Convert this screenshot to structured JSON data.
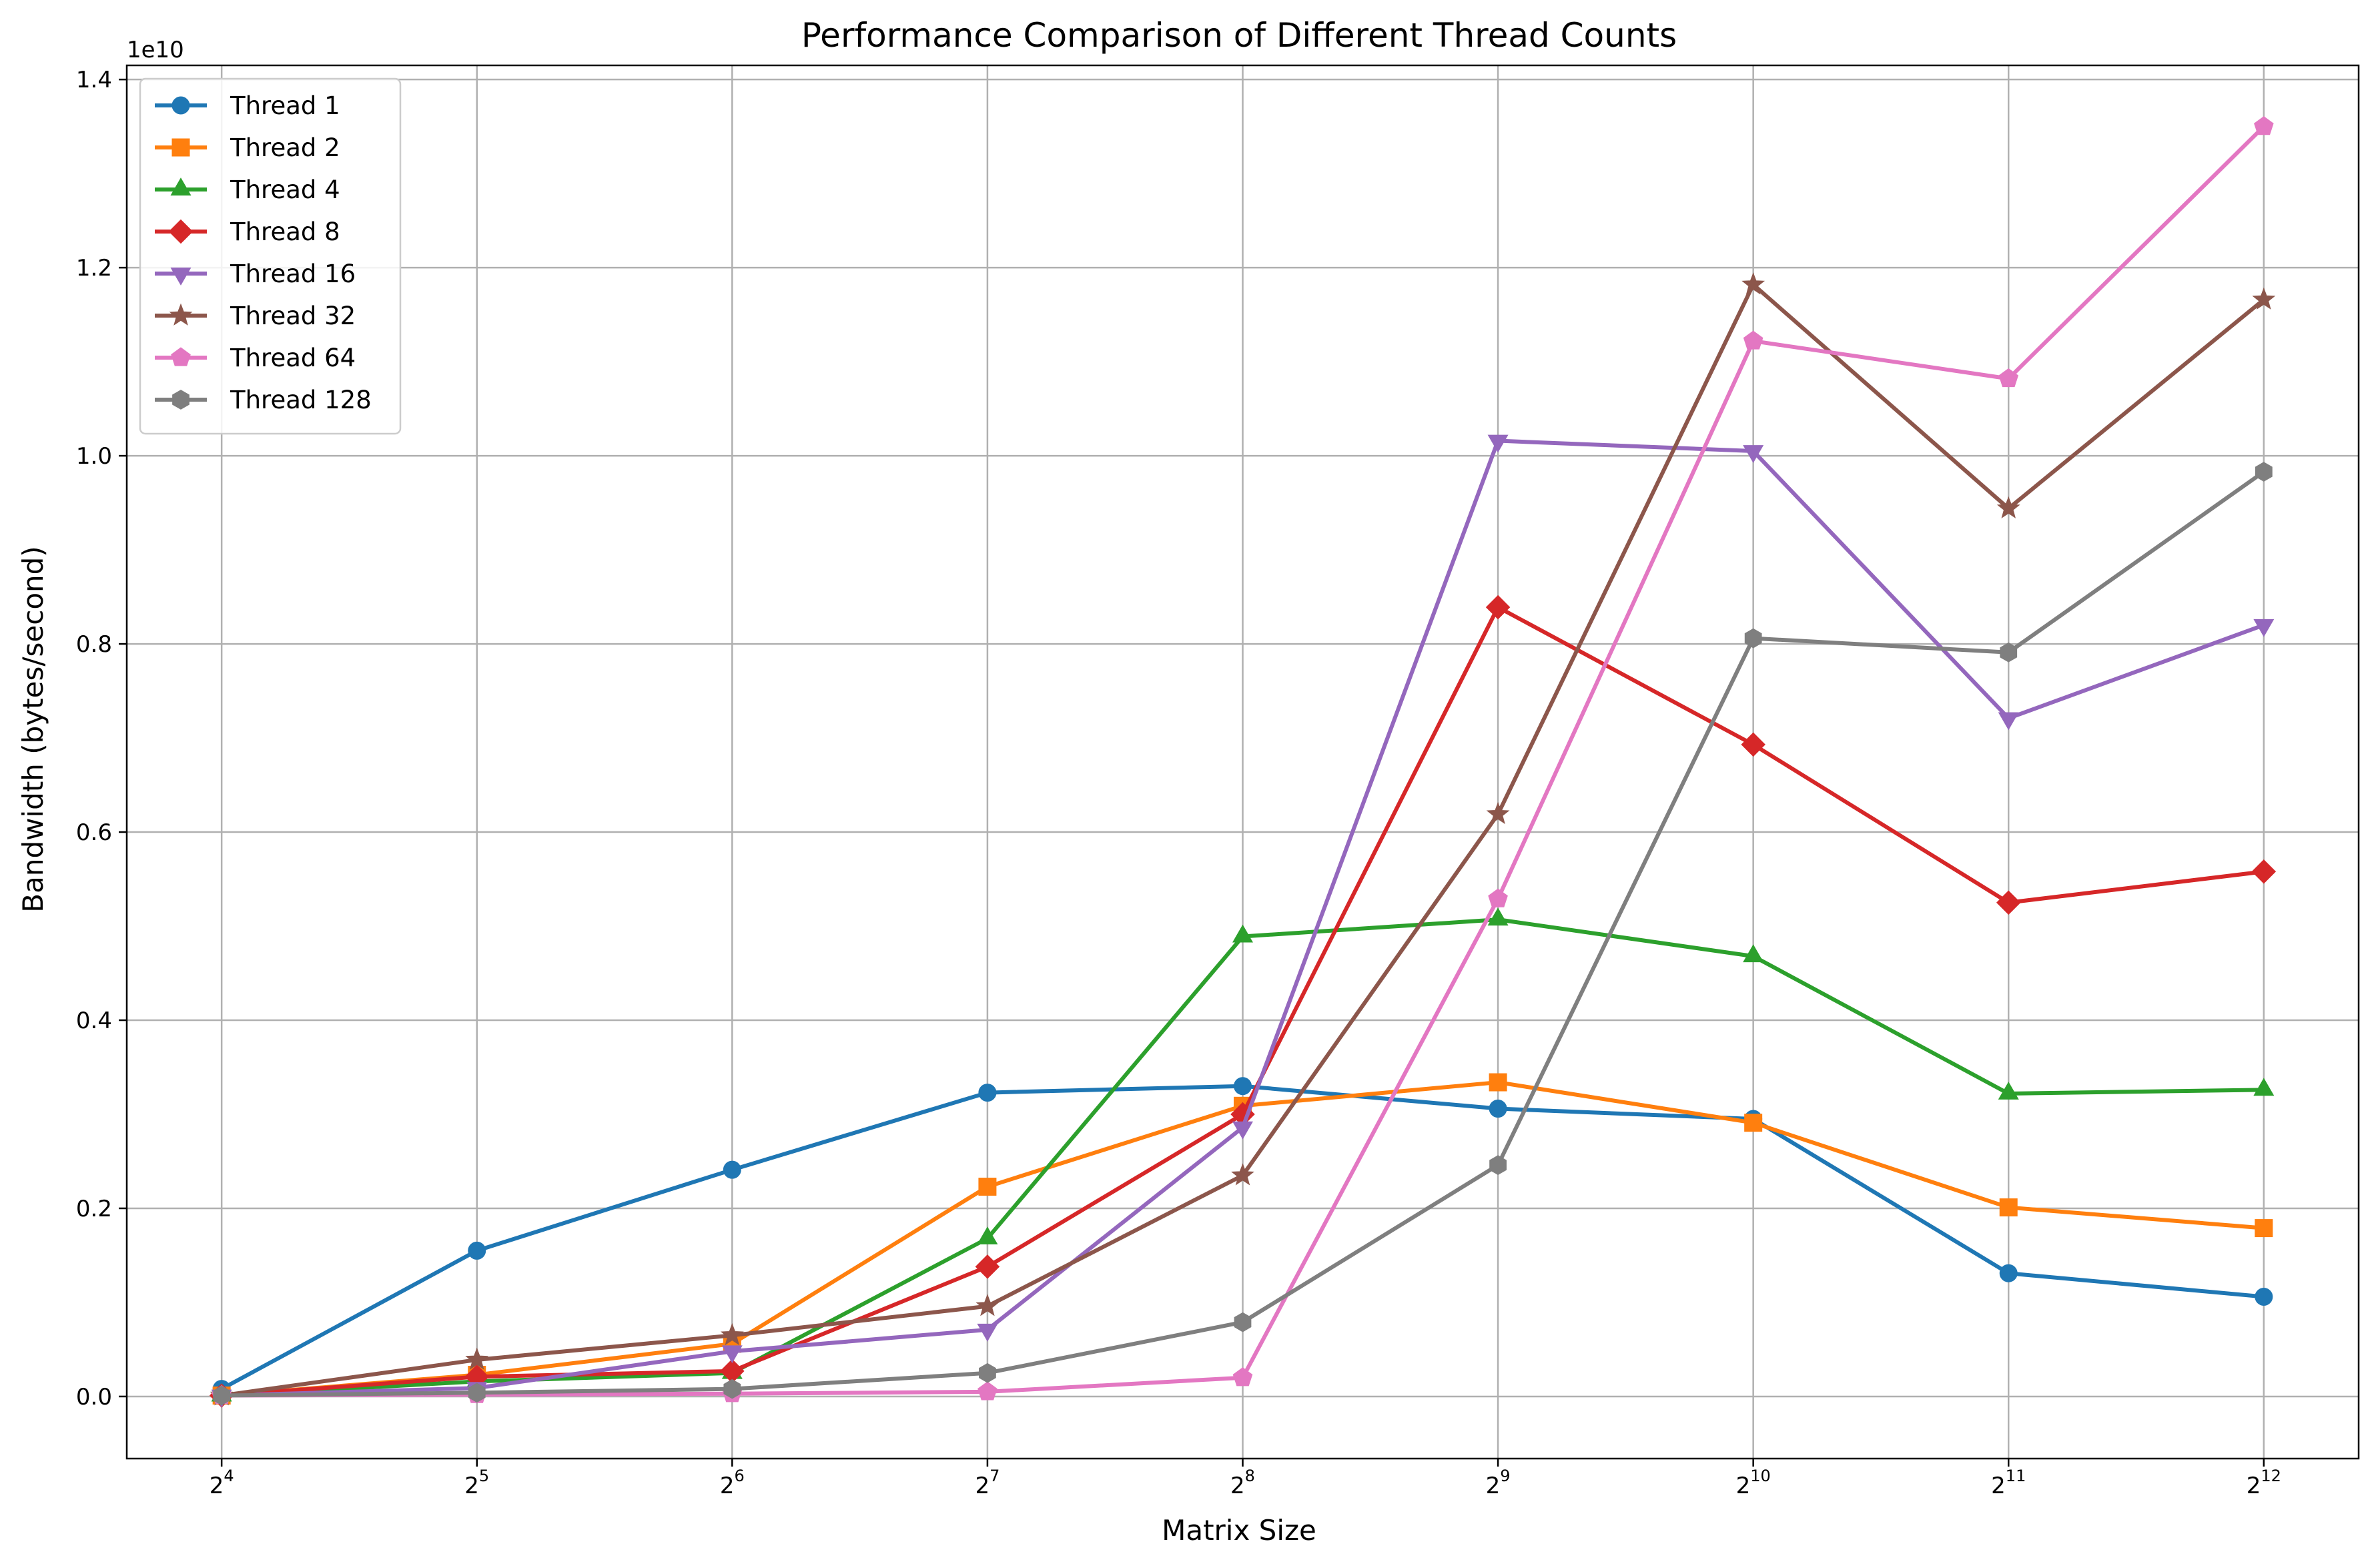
{
  "chart_data": {
    "type": "line",
    "title": "Performance Comparison of Different Thread Counts",
    "xlabel": "Matrix Size",
    "ylabel": "Bandwidth (bytes/second)",
    "y_offset_text": "1e10",
    "x_base": "2",
    "x_exponents": [
      "4",
      "5",
      "6",
      "7",
      "8",
      "9",
      "10",
      "11",
      "12"
    ],
    "x": [
      16,
      32,
      64,
      128,
      256,
      512,
      1024,
      2048,
      4096
    ],
    "y_ticks": [
      "0.0",
      "0.2",
      "0.4",
      "0.6",
      "0.8",
      "1.0",
      "1.2",
      "1.4"
    ],
    "y_tick_values": [
      0,
      0.2,
      0.4,
      0.6,
      0.8,
      1.0,
      1.2,
      1.4
    ],
    "ylim": [
      -0.066,
      1.415
    ],
    "grid": true,
    "legend_position": "upper-left",
    "series": [
      {
        "name": "Thread 1",
        "color": "#1f77b4",
        "marker": "circle",
        "values": [
          0.008,
          0.155,
          0.241,
          0.323,
          0.33,
          0.306,
          0.295,
          0.131,
          0.106
        ]
      },
      {
        "name": "Thread 2",
        "color": "#ff7f0e",
        "marker": "square",
        "values": [
          0.001,
          0.023,
          0.056,
          0.223,
          0.309,
          0.334,
          0.291,
          0.201,
          0.179
        ]
      },
      {
        "name": "Thread 4",
        "color": "#2ca02c",
        "marker": "triangle-up",
        "values": [
          0.001,
          0.016,
          0.025,
          0.168,
          0.489,
          0.507,
          0.468,
          0.322,
          0.326
        ]
      },
      {
        "name": "Thread 8",
        "color": "#d62728",
        "marker": "diamond",
        "values": [
          0.001,
          0.021,
          0.027,
          0.138,
          0.3,
          0.839,
          0.693,
          0.525,
          0.558
        ]
      },
      {
        "name": "Thread 16",
        "color": "#9467bd",
        "marker": "triangle-down",
        "values": [
          0.001,
          0.009,
          0.048,
          0.071,
          0.286,
          1.016,
          1.005,
          0.721,
          0.82
        ]
      },
      {
        "name": "Thread 32",
        "color": "#8c564b",
        "marker": "star",
        "values": [
          0.001,
          0.039,
          0.065,
          0.096,
          0.235,
          0.619,
          1.182,
          0.944,
          1.166
        ]
      },
      {
        "name": "Thread 64",
        "color": "#e377c2",
        "marker": "pentagon",
        "values": [
          0.001,
          0.002,
          0.003,
          0.005,
          0.02,
          0.529,
          1.122,
          1.082,
          1.35
        ]
      },
      {
        "name": "Thread 128",
        "color": "#7f7f7f",
        "marker": "hexagon",
        "values": [
          0.001,
          0.004,
          0.008,
          0.025,
          0.079,
          0.246,
          0.806,
          0.791,
          0.983
        ]
      }
    ]
  }
}
